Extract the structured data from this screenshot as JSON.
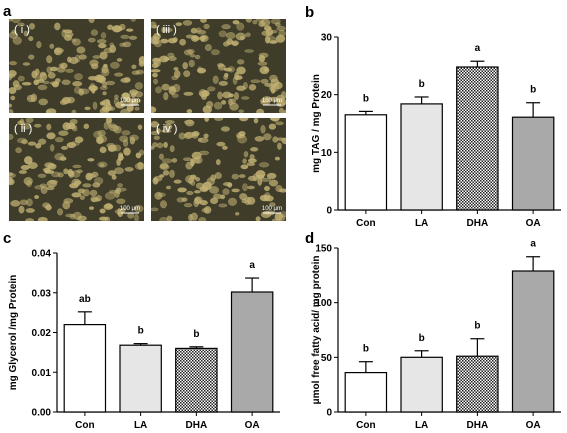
{
  "panels": {
    "a": {
      "letter": "a",
      "images": [
        {
          "label": "( i )",
          "scale": "100 μm"
        },
        {
          "label": "( iii )",
          "scale": "100 μm"
        },
        {
          "label": "( ii )",
          "scale": "100 μm"
        },
        {
          "label": "( iv )",
          "scale": "100 μm"
        }
      ]
    }
  },
  "colors": {
    "micrograph_bg": "#3f3d2a",
    "cell": "#bfae70",
    "frame": "#000000",
    "bar_con": "#ffffff",
    "bar_la": "#e6e6e6",
    "bar_dha": "checker",
    "bar_oa": "#a9a9a9"
  },
  "chart_data": [
    {
      "panel": "b",
      "type": "bar",
      "categories": [
        "Con",
        "LA",
        "DHA",
        "OA"
      ],
      "values": [
        16.5,
        18.4,
        24.8,
        16.1
      ],
      "errors": [
        0.6,
        1.2,
        1.0,
        2.5
      ],
      "labels": [
        "b",
        "b",
        "a",
        "b"
      ],
      "ylabel": "mg TAG / mg Protein",
      "ylim": [
        0,
        30
      ],
      "yticks": [
        "0",
        "10",
        "20",
        "30"
      ]
    },
    {
      "panel": "c",
      "type": "bar",
      "categories": [
        "Con",
        "LA",
        "DHA",
        "OA"
      ],
      "values": [
        0.022,
        0.0168,
        0.016,
        0.0302
      ],
      "errors": [
        0.0032,
        0.0004,
        0.0004,
        0.0035
      ],
      "labels": [
        "ab",
        "b",
        "b",
        "a"
      ],
      "ylabel": "mg Glycerol /mg Protein",
      "ylim": [
        0,
        0.04
      ],
      "yticks": [
        "0.00",
        "0.01",
        "0.02",
        "0.03",
        "0.04"
      ]
    },
    {
      "panel": "d",
      "type": "bar",
      "categories": [
        "Con",
        "LA",
        "DHA",
        "OA"
      ],
      "values": [
        36,
        50,
        51,
        129
      ],
      "errors": [
        10,
        6,
        16,
        13
      ],
      "labels": [
        "b",
        "b",
        "b",
        "a"
      ],
      "ylabel": "μmol free fatty acid/ mg protein",
      "ylim": [
        0,
        150
      ],
      "yticks": [
        "0",
        "50",
        "100",
        "150"
      ]
    }
  ]
}
